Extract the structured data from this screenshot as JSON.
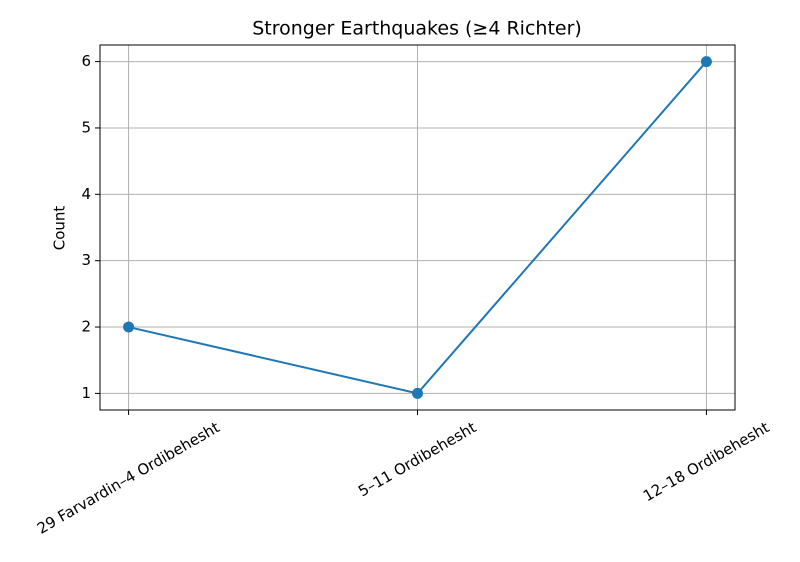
{
  "chart_data": {
    "type": "line",
    "title": "Stronger Earthquakes (≥4 Richter)",
    "y_label": "Count",
    "categories": [
      "29 Farvardin–4 Ordibehesht",
      "5–11 Ordibehesht",
      "12–18 Ordibehesht"
    ],
    "values": [
      2,
      1,
      6
    ],
    "color": "#1f77b4",
    "ylim": [
      0.75,
      6.25
    ],
    "yticks": [
      1,
      2,
      3,
      4,
      5,
      6
    ],
    "grid": true
  }
}
